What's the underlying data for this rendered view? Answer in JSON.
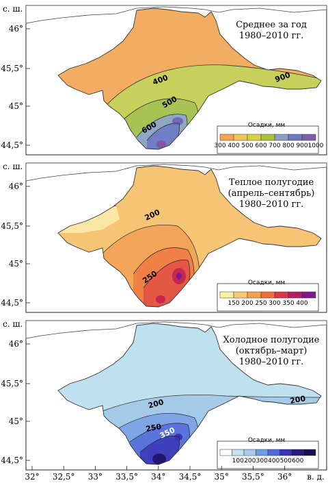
{
  "axes": {
    "y_title": "с. ш.",
    "x_title": "в. д.",
    "lat_ticks": [
      "46°",
      "45,5°",
      "45°",
      "44,5°"
    ],
    "lon_ticks": [
      "32°",
      "32,5°",
      "33°",
      "33,5°",
      "34°",
      "34,5°",
      "35°",
      "35,5°",
      "36°"
    ]
  },
  "panels": [
    {
      "id": "annual",
      "title_lines": [
        "Среднее за год",
        "1980–2010 гг."
      ],
      "legend_title": "Осадки, мм",
      "legend_labels": [
        "300",
        "400",
        "500",
        "600",
        "700",
        "800",
        "900",
        "1000"
      ],
      "legend_colors": [
        "#f1a457",
        "#f0c45a",
        "#d9d04a",
        "#aac23d",
        "#8a9fc0",
        "#6e79c0",
        "#7c5fa8"
      ],
      "base_color": "#f2ad62",
      "contour_labels": [
        "400",
        "500",
        "600",
        "900"
      ]
    },
    {
      "id": "warm",
      "title_lines": [
        "Теплое полугодие",
        "(апрель–сентябрь)",
        "1980–2010 гг."
      ],
      "legend_title": "Осадки, мм",
      "legend_labels": [
        "150",
        "200",
        "250",
        "300",
        "350",
        "400"
      ],
      "legend_colors": [
        "#fdf0a8",
        "#f8c978",
        "#f2a152",
        "#eb6f3c",
        "#d9364a",
        "#b41e62",
        "#7a1a8c"
      ],
      "base_color": "#f6c475",
      "contour_labels": [
        "200",
        "250"
      ]
    },
    {
      "id": "cold",
      "title_lines": [
        "Холодное полугодие",
        "(октябрь–март)",
        "1980–2010 гг."
      ],
      "legend_title": "Осадки, мм",
      "legend_labels": [
        "100",
        "200",
        "300",
        "400",
        "500",
        "600"
      ],
      "legend_colors": [
        "#ffffff",
        "#c4e2ef",
        "#a6cce9",
        "#6f9ce2",
        "#4f69d9",
        "#3a32b8",
        "#2a1a7c",
        "#1a0f4c"
      ],
      "base_color": "#bfe0ee",
      "contour_labels": [
        "200",
        "250",
        "350"
      ]
    }
  ]
}
